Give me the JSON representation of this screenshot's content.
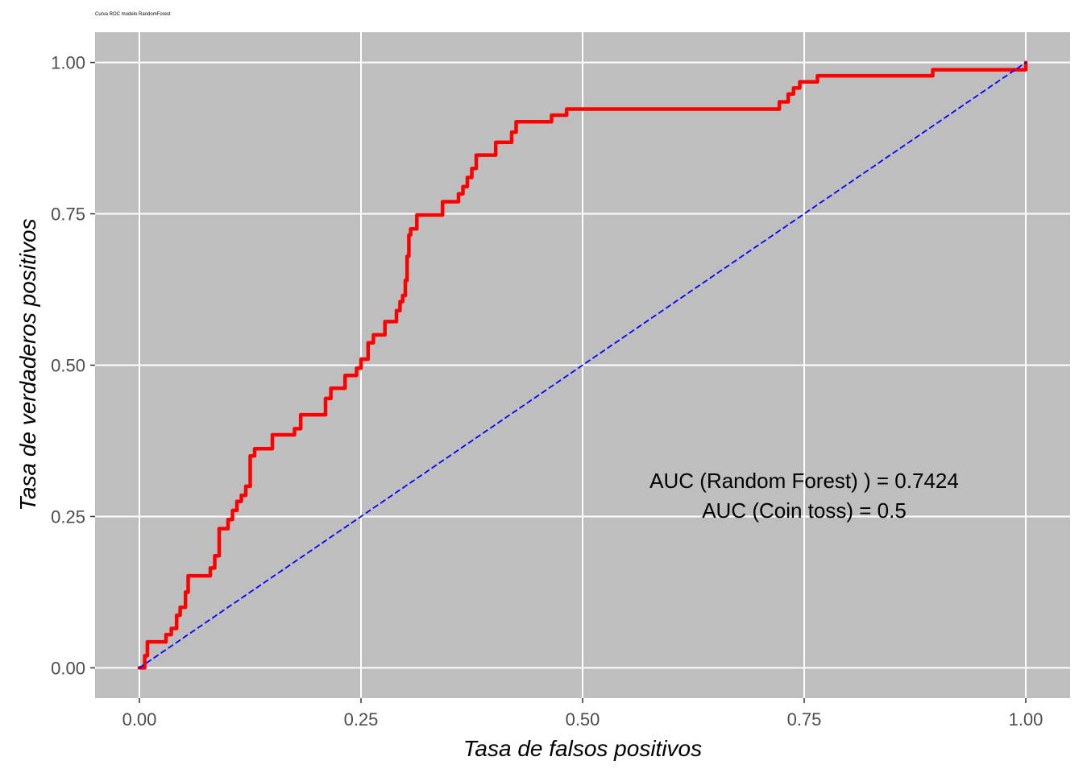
{
  "chart_data": {
    "type": "line",
    "title": "Curva ROC modelo RandomForest",
    "xlabel": "Tasa de falsos positivos",
    "ylabel": "Tasa de verdaderos positivos",
    "xlim": [
      -0.05,
      1.05
    ],
    "ylim": [
      -0.05,
      1.05
    ],
    "xticks": [
      0,
      0.25,
      0.5,
      0.75,
      1
    ],
    "xtick_labels": [
      "0.00",
      "0.25",
      "0.50",
      "0.75",
      "1.00"
    ],
    "yticks": [
      0,
      0.25,
      0.5,
      0.75,
      1
    ],
    "ytick_labels": [
      "0.00",
      "0.25",
      "0.50",
      "0.75",
      "1.00"
    ],
    "grid": true,
    "background": "#bebebe",
    "series": [
      {
        "color": "#ff0000",
        "style": "solid",
        "step": true,
        "x": [
          0,
          0.006,
          0.006,
          0.009,
          0.009,
          0.03,
          0.03,
          0.036,
          0.036,
          0.042,
          0.042,
          0.046,
          0.046,
          0.052,
          0.052,
          0.055,
          0.055,
          0.08,
          0.08,
          0.085,
          0.085,
          0.09,
          0.09,
          0.1,
          0.1,
          0.105,
          0.105,
          0.11,
          0.11,
          0.115,
          0.115,
          0.12,
          0.12,
          0.125,
          0.125,
          0.13,
          0.13,
          0.15,
          0.15,
          0.175,
          0.175,
          0.182,
          0.182,
          0.21,
          0.21,
          0.216,
          0.216,
          0.232,
          0.232,
          0.245,
          0.245,
          0.25,
          0.25,
          0.258,
          0.258,
          0.264,
          0.264,
          0.277,
          0.277,
          0.29,
          0.29,
          0.294,
          0.294,
          0.297,
          0.297,
          0.3,
          0.3,
          0.302,
          0.302,
          0.304,
          0.304,
          0.306,
          0.306,
          0.313,
          0.313,
          0.342,
          0.342,
          0.36,
          0.36,
          0.365,
          0.365,
          0.37,
          0.37,
          0.375,
          0.375,
          0.38,
          0.38,
          0.402,
          0.402,
          0.42,
          0.42,
          0.425,
          0.425,
          0.465,
          0.465,
          0.482,
          0.482,
          0.722,
          0.722,
          0.732,
          0.732,
          0.738,
          0.738,
          0.745,
          0.745,
          0.765,
          0.765,
          0.895,
          0.895,
          1.0,
          1.0
        ],
        "y": [
          0,
          0,
          0.02,
          0.02,
          0.043,
          0.043,
          0.055,
          0.055,
          0.065,
          0.065,
          0.087,
          0.087,
          0.1,
          0.1,
          0.125,
          0.125,
          0.152,
          0.152,
          0.165,
          0.165,
          0.185,
          0.185,
          0.23,
          0.23,
          0.245,
          0.245,
          0.26,
          0.26,
          0.275,
          0.275,
          0.285,
          0.285,
          0.3,
          0.3,
          0.35,
          0.35,
          0.362,
          0.362,
          0.385,
          0.385,
          0.395,
          0.395,
          0.418,
          0.418,
          0.445,
          0.445,
          0.462,
          0.462,
          0.483,
          0.483,
          0.495,
          0.495,
          0.51,
          0.51,
          0.537,
          0.537,
          0.55,
          0.55,
          0.572,
          0.572,
          0.59,
          0.59,
          0.605,
          0.605,
          0.615,
          0.615,
          0.64,
          0.64,
          0.68,
          0.68,
          0.715,
          0.715,
          0.725,
          0.725,
          0.748,
          0.748,
          0.77,
          0.77,
          0.783,
          0.783,
          0.795,
          0.795,
          0.81,
          0.81,
          0.825,
          0.825,
          0.847,
          0.847,
          0.868,
          0.868,
          0.885,
          0.885,
          0.902,
          0.902,
          0.913,
          0.913,
          0.923,
          0.923,
          0.935,
          0.935,
          0.948,
          0.948,
          0.958,
          0.958,
          0.968,
          0.968,
          0.978,
          0.978,
          0.988,
          0.988,
          1.0
        ]
      },
      {
        "color": "#0000ff",
        "style": "dashed",
        "x": [
          0,
          1
        ],
        "y": [
          0,
          1
        ]
      }
    ],
    "annotations": [
      {
        "text": "AUC (Random Forest) ) = 0.7424",
        "x": 0.75,
        "y": 0.297
      },
      {
        "text": "AUC (Coin toss) = 0.5",
        "x": 0.75,
        "y": 0.248
      }
    ]
  }
}
